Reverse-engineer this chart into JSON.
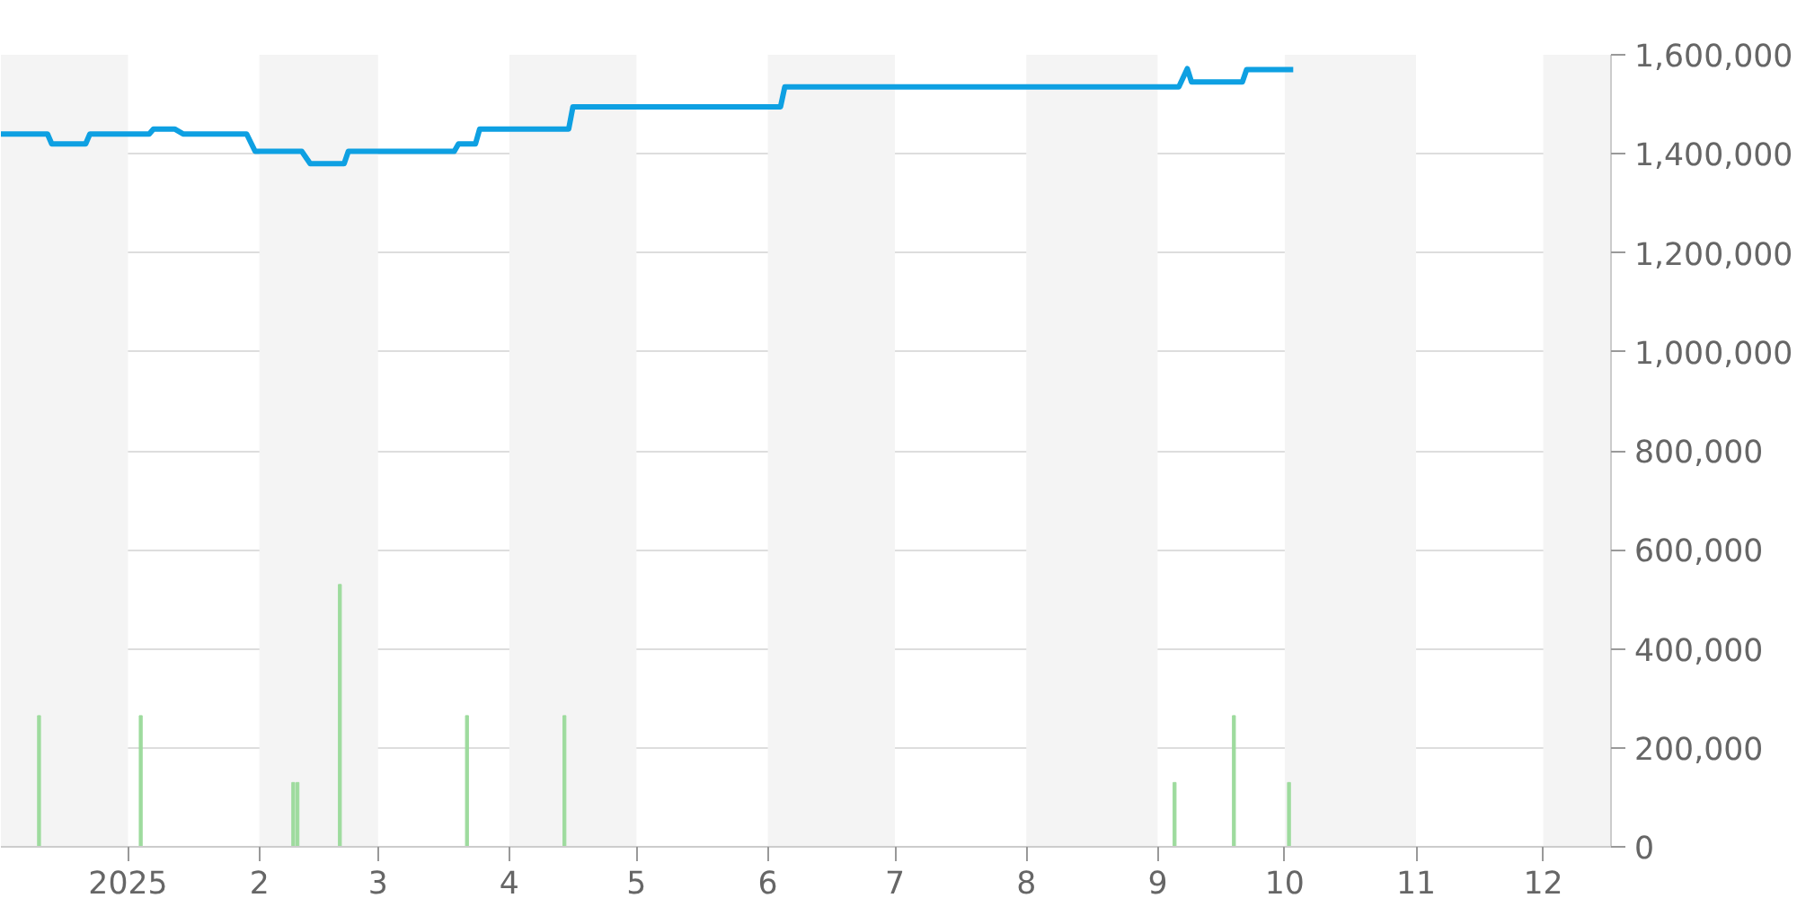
{
  "chart_data": {
    "type": "line",
    "xlim": [
      "2024-12-02",
      "2025-12-17"
    ],
    "xticks": [
      {
        "value": "2025-01-01",
        "label": "2025"
      },
      {
        "value": "2025-02-01",
        "label": "2"
      },
      {
        "value": "2025-03-01",
        "label": "3"
      },
      {
        "value": "2025-04-01",
        "label": "4"
      },
      {
        "value": "2025-05-01",
        "label": "5"
      },
      {
        "value": "2025-06-01",
        "label": "6"
      },
      {
        "value": "2025-07-01",
        "label": "7"
      },
      {
        "value": "2025-08-01",
        "label": "8"
      },
      {
        "value": "2025-09-01",
        "label": "9"
      },
      {
        "value": "2025-10-01",
        "label": "10"
      },
      {
        "value": "2025-11-01",
        "label": "11"
      },
      {
        "value": "2025-12-01",
        "label": "12"
      }
    ],
    "ylim": [
      0,
      1600000
    ],
    "yticks": [
      {
        "value": 0,
        "label": "0"
      },
      {
        "value": 200000,
        "label": "200,000"
      },
      {
        "value": 400000,
        "label": "400,000"
      },
      {
        "value": 600000,
        "label": "600,000"
      },
      {
        "value": 800000,
        "label": "800,000"
      },
      {
        "value": 1000000,
        "label": "1,000,000"
      },
      {
        "value": 1200000,
        "label": "1,200,000"
      },
      {
        "value": 1400000,
        "label": "1,400,000"
      },
      {
        "value": 1600000,
        "label": "1,600,000"
      }
    ],
    "grid": "y",
    "marker": "none",
    "line_style": "solid",
    "bands": [
      {
        "axis": "x",
        "from": "2024-12-02",
        "to": "2025-01-01",
        "color": "#f4f4f4"
      },
      {
        "axis": "x",
        "from": "2025-02-01",
        "to": "2025-03-01",
        "color": "#f4f4f4"
      },
      {
        "axis": "x",
        "from": "2025-04-01",
        "to": "2025-05-01",
        "color": "#f4f4f4"
      },
      {
        "axis": "x",
        "from": "2025-06-01",
        "to": "2025-07-01",
        "color": "#f4f4f4"
      },
      {
        "axis": "x",
        "from": "2025-08-01",
        "to": "2025-09-01",
        "color": "#f4f4f4"
      },
      {
        "axis": "x",
        "from": "2025-10-01",
        "to": "2025-11-01",
        "color": "#f4f4f4"
      },
      {
        "axis": "x",
        "from": "2025-12-01",
        "to": "2025-12-17",
        "color": "#f4f4f4"
      }
    ],
    "series": [
      {
        "type": "bar",
        "color": "#9edb9e",
        "x": [
          "2024-12-11",
          "2025-01-04",
          "2025-02-09",
          "2025-02-10",
          "2025-02-20",
          "2025-03-22",
          "2025-04-14",
          "2025-09-05",
          "2025-09-19",
          "2025-10-02"
        ],
        "values": [
          265000,
          265000,
          130000,
          130000,
          530000,
          265000,
          265000,
          130000,
          265000,
          130000
        ]
      },
      {
        "color": "#0ea0e2",
        "x": [
          "2024-12-02",
          "2024-12-13",
          "2024-12-14",
          "2024-12-22",
          "2024-12-23",
          "2025-01-06",
          "2025-01-07",
          "2025-01-12",
          "2025-01-14",
          "2025-01-29",
          "2025-01-31",
          "2025-02-11",
          "2025-02-13",
          "2025-02-21",
          "2025-02-22",
          "2025-03-19",
          "2025-03-20",
          "2025-03-24",
          "2025-03-25",
          "2025-04-15",
          "2025-04-16",
          "2025-06-04",
          "2025-06-05",
          "2025-09-06",
          "2025-09-08",
          "2025-09-09",
          "2025-09-21",
          "2025-09-22",
          "2025-10-03"
        ],
        "values": [
          1440000,
          1440000,
          1420000,
          1420000,
          1440000,
          1440000,
          1450000,
          1450000,
          1440000,
          1440000,
          1405000,
          1405000,
          1380000,
          1380000,
          1405000,
          1405000,
          1420000,
          1420000,
          1450000,
          1450000,
          1495000,
          1495000,
          1535000,
          1535000,
          1572000,
          1545000,
          1545000,
          1570000,
          1570000
        ]
      }
    ]
  }
}
